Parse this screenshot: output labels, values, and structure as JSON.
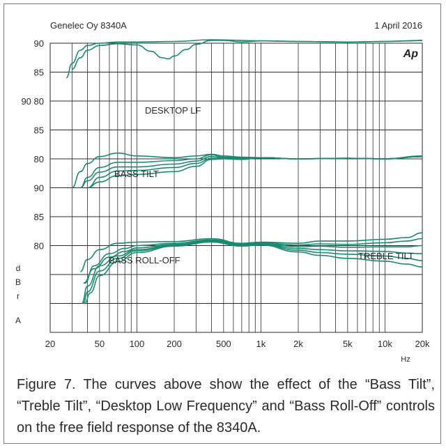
{
  "chart_data": {
    "type": "line",
    "header_left": "Genelec Oy 8340A",
    "header_right": "1 April 2016",
    "logo": "Ap",
    "x_scale": "log",
    "xlim": [
      20,
      20000
    ],
    "x_ticks": [
      20,
      50,
      100,
      200,
      500,
      1000,
      2000,
      5000,
      10000,
      20000
    ],
    "x_tick_labels": [
      "20",
      "50",
      "100",
      "200",
      "500",
      "1k",
      "2k",
      "5k",
      "10k",
      "20k"
    ],
    "x_unit": "Hz",
    "y_axis_label": [
      "d",
      "B",
      "r",
      "A"
    ],
    "y_tick_labels": [
      {
        "text": "90",
        "row": 0
      },
      {
        "text": "85",
        "row": 1
      },
      {
        "text": "90 80",
        "row": 2
      },
      {
        "text": "85",
        "row": 3
      },
      {
        "text": "80",
        "row": 4
      },
      {
        "text": "90",
        "row": 5
      },
      {
        "text": "85",
        "row": 6
      },
      {
        "text": "80",
        "row": 7
      }
    ],
    "annotations": [
      "DESKTOP LF",
      "BASS TILT",
      "BASS ROLL-OFF",
      "TREBLE TILT"
    ],
    "panels": [
      {
        "name": "DESKTOP LF",
        "series": [
          {
            "x": [
              27,
              30,
              35,
              40,
              50,
              70,
              100,
              200,
              400,
              1000,
              2000,
              5000,
              10000,
              16000,
              20000
            ],
            "y": [
              84,
              86.5,
              88.8,
              89.6,
              90.0,
              90.2,
              90.2,
              90.3,
              90.6,
              90.4,
              90.3,
              90.2,
              90.3,
              90.4,
              90.5
            ]
          },
          {
            "x": [
              30,
              35,
              40,
              50,
              70,
              100,
              130,
              160,
              180,
              200,
              250,
              300,
              400,
              500,
              700,
              1000,
              2000,
              5000,
              10000,
              20000
            ],
            "y": [
              85.5,
              87.5,
              88.8,
              89.6,
              89.9,
              89.7,
              88.6,
              87.5,
              87.3,
              87.8,
              88.9,
              89.8,
              90.5,
              90.5,
              90.2,
              90.4,
              90.3,
              90.2,
              90.3,
              90.5
            ]
          }
        ]
      },
      {
        "name": "BASS TILT",
        "series": [
          {
            "x": [
              30,
              35,
              40,
              50,
              70,
              100,
              200,
              300,
              400,
              500,
              700,
              1000,
              2000,
              5000,
              10000,
              20000
            ],
            "y": [
              80,
              82.8,
              84.2,
              85.4,
              86.0,
              85.5,
              85.2,
              85.5,
              85.8,
              85.5,
              85.3,
              85.2,
              85.0,
              85.1,
              85.0,
              85.5
            ]
          },
          {
            "x": [
              35,
              40,
              50,
              70,
              100,
              200,
              300,
              400,
              500,
              700,
              1000,
              2000,
              5000,
              10000,
              20000
            ],
            "y": [
              80.0,
              81.8,
              83.5,
              84.4,
              84.4,
              84.7,
              85.0,
              85.7,
              85.3,
              85.2,
              85.2,
              85.0,
              85.1,
              85.0,
              85.4
            ]
          },
          {
            "x": [
              35,
              40,
              50,
              70,
              100,
              200,
              300,
              400,
              500,
              700,
              1000,
              2000,
              5000,
              10000,
              20000
            ],
            "y": [
              80.0,
              81.2,
              82.7,
              83.6,
              83.6,
              84.1,
              84.6,
              85.4,
              85.2,
              85.1,
              85.2,
              85.0,
              85.1,
              85.0,
              85.4
            ]
          },
          {
            "x": [
              40,
              50,
              70,
              100,
              200,
              300,
              400,
              500,
              700,
              1000,
              2000,
              5000,
              10000,
              20000
            ],
            "y": [
              80.0,
              81.8,
              82.9,
              83.0,
              83.5,
              84.2,
              85.1,
              85.1,
              85.0,
              85.2,
              85.0,
              85.1,
              85.0,
              85.4
            ]
          },
          {
            "x": [
              40,
              50,
              70,
              100,
              200,
              300,
              400,
              500,
              700,
              1000,
              2000,
              5000,
              10000,
              20000
            ],
            "y": [
              80.0,
              81.0,
              82.1,
              82.3,
              82.8,
              83.7,
              84.9,
              85.0,
              84.9,
              85.2,
              85.0,
              85.1,
              85.0,
              85.4
            ]
          }
        ]
      },
      {
        "name": "BASS ROLL-OFF / TREBLE TILT",
        "series": [
          {
            "x": [
              35,
              40,
              50,
              70,
              100,
              200,
              400,
              700,
              1000,
              2000,
              3000,
              5000,
              10000,
              15000,
              20000
            ],
            "y": [
              80.5,
              82.6,
              84.3,
              85.4,
              85.6,
              85.7,
              86.2,
              85.4,
              85.6,
              85.4,
              85.8,
              85.8,
              86.1,
              86.4,
              87.2
            ]
          },
          {
            "x": [
              38,
              45,
              60,
              80,
              100,
              200,
              400,
              700,
              1000,
              2000,
              3000,
              5000,
              10000,
              15000,
              20000
            ],
            "y": [
              78.5,
              81.5,
              83.6,
              84.5,
              85.0,
              85.4,
              86.0,
              85.3,
              85.5,
              85.1,
              85.3,
              85.2,
              85.5,
              85.8,
              86.2
            ]
          },
          {
            "x": [
              37,
              45,
              60,
              80,
              100,
              200,
              400,
              700,
              1000,
              2000,
              3000,
              5000,
              10000,
              15000,
              20000
            ],
            "y": [
              78.5,
              81.0,
              83.0,
              84.0,
              84.6,
              85.2,
              85.9,
              85.2,
              85.4,
              84.8,
              84.9,
              84.7,
              84.8,
              84.8,
              85.0
            ]
          },
          {
            "x": [
              36,
              40,
              50,
              70,
              100,
              200,
              400,
              700,
              1000,
              2000,
              3000,
              5000,
              10000,
              15000,
              20000
            ],
            "y": [
              75.0,
              78.0,
              81.5,
              83.2,
              84.3,
              85.1,
              85.8,
              85.1,
              85.3,
              84.5,
              84.3,
              84.1,
              84.0,
              83.7,
              83.6
            ]
          },
          {
            "x": [
              37,
              40,
              50,
              70,
              100,
              200,
              400,
              700,
              1000,
              2000,
              3000,
              5000,
              10000,
              15000,
              20000
            ],
            "y": [
              75.0,
              77.0,
              80.6,
              82.8,
              84.1,
              85.0,
              85.7,
              85.0,
              85.2,
              84.2,
              83.8,
              83.5,
              83.2,
              82.8,
              82.4
            ]
          },
          {
            "x": [
              38,
              42,
              50,
              70,
              100,
              200,
              400,
              700,
              1000,
              2000,
              3000,
              5000,
              10000,
              15000,
              20000
            ],
            "y": [
              75.0,
              76.8,
              79.8,
              82.2,
              83.8,
              84.9,
              85.6,
              84.9,
              85.1,
              83.9,
              83.3,
              82.8,
              82.3,
              81.8,
              81.3
            ]
          }
        ]
      }
    ]
  },
  "caption": "Figure 7. The curves above show the effect of the “Bass Tilt”, “Treble Tilt”, “Desktop Low Frequency” and “Bass Roll-Off” controls on the free field response of the 8340A.",
  "colors": {
    "curve": "#1a8a6e",
    "grid": "#2b2b2b",
    "text": "#2a2a2a"
  }
}
